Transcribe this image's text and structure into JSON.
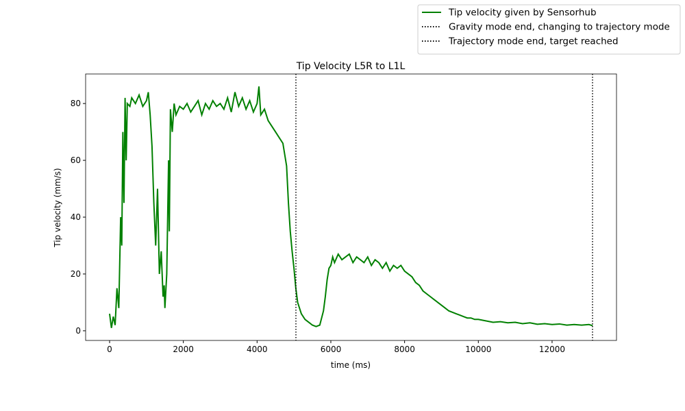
{
  "chart_data": {
    "type": "line",
    "title": "Tip Velocity L5R to L1L",
    "x_label": "time (ms)",
    "y_label": "Tip velocity (mm/s)",
    "x": [
      0,
      50,
      100,
      150,
      200,
      250,
      300,
      330,
      360,
      390,
      420,
      450,
      480,
      550,
      600,
      700,
      800,
      900,
      1000,
      1050,
      1100,
      1150,
      1200,
      1250,
      1300,
      1350,
      1400,
      1450,
      1480,
      1500,
      1550,
      1600,
      1620,
      1650,
      1700,
      1750,
      1800,
      1900,
      2000,
      2100,
      2200,
      2300,
      2400,
      2500,
      2600,
      2700,
      2800,
      2900,
      3000,
      3100,
      3200,
      3300,
      3400,
      3500,
      3600,
      3700,
      3800,
      3900,
      4000,
      4050,
      4100,
      4200,
      4300,
      4400,
      4500,
      4600,
      4700,
      4800,
      4850,
      4900,
      4950,
      5000,
      5050,
      5100,
      5200,
      5300,
      5400,
      5500,
      5600,
      5700,
      5800,
      5850,
      5900,
      5950,
      6000,
      6050,
      6100,
      6200,
      6300,
      6400,
      6500,
      6600,
      6700,
      6800,
      6900,
      7000,
      7100,
      7200,
      7300,
      7400,
      7500,
      7600,
      7700,
      7800,
      7900,
      8000,
      8100,
      8200,
      8300,
      8400,
      8500,
      8600,
      8700,
      8800,
      8900,
      9000,
      9100,
      9200,
      9300,
      9400,
      9500,
      9600,
      9700,
      9800,
      9900,
      10000,
      10200,
      10400,
      10600,
      10800,
      11000,
      11200,
      11400,
      11600,
      11800,
      12000,
      12200,
      12400,
      12600,
      12800,
      13000,
      13100
    ],
    "series": [
      {
        "name": "Tip velocity given by Sensorhub",
        "color": "#008000",
        "values": [
          6,
          1,
          5,
          2,
          15,
          8,
          40,
          30,
          70,
          45,
          82,
          60,
          80,
          79,
          82,
          80,
          83,
          79,
          81,
          84,
          76,
          65,
          45,
          30,
          50,
          20,
          28,
          12,
          16,
          8,
          20,
          60,
          35,
          78,
          70,
          80,
          76,
          79,
          78,
          80,
          77,
          79,
          81,
          76,
          80,
          78,
          81,
          79,
          80,
          78,
          82,
          77,
          84,
          79,
          82,
          78,
          81,
          77,
          80,
          86,
          76,
          78,
          74,
          72,
          70,
          68,
          66,
          58,
          45,
          35,
          28,
          22,
          15,
          10,
          6,
          4,
          3,
          2,
          1.5,
          2,
          7,
          12,
          18,
          22,
          23,
          26,
          24,
          27,
          25,
          26,
          27,
          24,
          26,
          25,
          24,
          26,
          23,
          25,
          24,
          22,
          24,
          21,
          23,
          22,
          23,
          21,
          20,
          19,
          17,
          16,
          14,
          13,
          12,
          11,
          10,
          9,
          8,
          7,
          6.5,
          6,
          5.5,
          5,
          4.5,
          4.5,
          4,
          4,
          3.5,
          3,
          3.2,
          2.8,
          3,
          2.5,
          2.8,
          2.3,
          2.5,
          2.2,
          2.4,
          2,
          2.2,
          2,
          2.2,
          1.8
        ]
      }
    ],
    "vlines": [
      {
        "x": 5053,
        "name": "Gravity mode end, changing to trajectory mode",
        "color": "#000000"
      },
      {
        "x": 13097,
        "name": "Trajectory mode end, target reached",
        "color": "#000000"
      }
    ],
    "xlim": [
      -650,
      13747
    ],
    "ylim": [
      -3.4,
      90.4
    ],
    "xticks": [
      0,
      2000,
      4000,
      6000,
      8000,
      10000,
      12000
    ],
    "yticks": [
      0,
      20,
      40,
      60,
      80
    ]
  }
}
